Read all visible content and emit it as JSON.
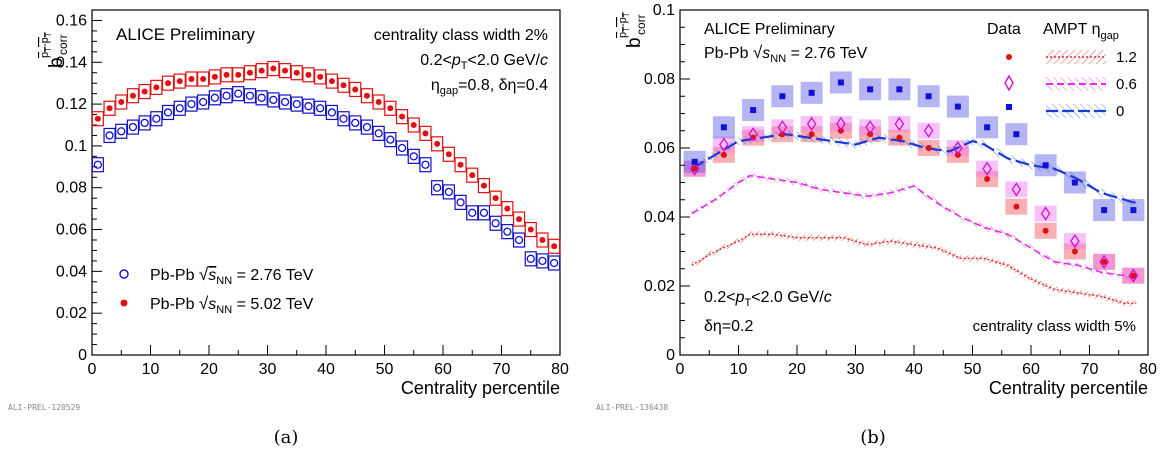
{
  "chart_data": [
    {
      "type": "scatter",
      "subfigure_label": "(a)",
      "watermark": "ALI-PREL-120529",
      "title": "ALICE Preliminary",
      "ylabel": "b",
      "ylabel_sub": "corr",
      "ylabel_sup": "p̄T-p̄T",
      "xlabel": "Centrality percentile",
      "xlim": [
        0,
        80
      ],
      "ylim": [
        0,
        0.165
      ],
      "xticks": [
        "0",
        "10",
        "20",
        "30",
        "40",
        "50",
        "60",
        "70",
        "80"
      ],
      "yticks": [
        "0",
        "0.02",
        "0.04",
        "0.06",
        "0.08",
        "0.1",
        "0.12",
        "0.14",
        "0.16"
      ],
      "annotations": [
        "centrality class width 2%",
        "0.2<pT<2.0 GeV/c",
        "ηgap=0.8, δη=0.4"
      ],
      "legend_position": "bottom-left",
      "series": [
        {
          "name": "Pb-Pb √sNN = 2.76 TeV",
          "color": "#1010c8",
          "marker": "open-circle",
          "x": [
            1,
            3,
            5,
            7,
            9,
            11,
            13,
            15,
            17,
            19,
            21,
            23,
            25,
            27,
            29,
            31,
            33,
            35,
            37,
            39,
            41,
            43,
            45,
            47,
            49,
            51,
            53,
            55,
            57,
            59,
            61,
            63,
            65,
            67,
            69,
            71,
            73,
            75,
            77,
            79
          ],
          "y": [
            0.091,
            0.105,
            0.107,
            0.109,
            0.111,
            0.113,
            0.116,
            0.118,
            0.12,
            0.121,
            0.123,
            0.124,
            0.125,
            0.124,
            0.123,
            0.122,
            0.121,
            0.12,
            0.119,
            0.118,
            0.116,
            0.113,
            0.111,
            0.109,
            0.106,
            0.103,
            0.099,
            0.095,
            0.091,
            0.08,
            0.078,
            0.073,
            0.068,
            0.068,
            0.063,
            0.059,
            0.055,
            0.046,
            0.045,
            0.044
          ]
        },
        {
          "name": "Pb-Pb √sNN = 5.02 TeV",
          "color": "#e01010",
          "marker": "filled-circle",
          "x": [
            1,
            3,
            5,
            7,
            9,
            11,
            13,
            15,
            17,
            19,
            21,
            23,
            25,
            27,
            29,
            31,
            33,
            35,
            37,
            39,
            41,
            43,
            45,
            47,
            49,
            51,
            53,
            55,
            57,
            59,
            61,
            63,
            65,
            67,
            69,
            71,
            73,
            75,
            77,
            79
          ],
          "y": [
            0.113,
            0.118,
            0.121,
            0.124,
            0.126,
            0.128,
            0.13,
            0.131,
            0.132,
            0.132,
            0.133,
            0.134,
            0.134,
            0.135,
            0.136,
            0.137,
            0.136,
            0.135,
            0.134,
            0.133,
            0.131,
            0.129,
            0.127,
            0.124,
            0.121,
            0.118,
            0.114,
            0.11,
            0.106,
            0.101,
            0.096,
            0.091,
            0.086,
            0.081,
            0.075,
            0.07,
            0.065,
            0.06,
            0.055,
            0.052
          ]
        }
      ]
    },
    {
      "type": "scatter",
      "subfigure_label": "(b)",
      "watermark": "ALI-PREL-136438",
      "title": "ALICE Preliminary",
      "subtitle": "Pb-Pb √sNN = 2.76 TeV",
      "ylabel": "b",
      "ylabel_sub": "corr",
      "ylabel_sup": "p̄T-p̄T",
      "xlabel": "Centrality percentile",
      "xlim": [
        0,
        80
      ],
      "ylim": [
        0,
        0.1
      ],
      "xticks": [
        "0",
        "10",
        "20",
        "30",
        "40",
        "50",
        "60",
        "70",
        "80"
      ],
      "yticks": [
        "0",
        "0.02",
        "0.04",
        "0.06",
        "0.08",
        "0.1"
      ],
      "annotations": [
        "0.2<pT<2.0 GeV/c",
        "δη=0.2",
        "centrality class width 5%"
      ],
      "legend_position": "top-right",
      "legend_headers": [
        "Data",
        "AMPT ηgap"
      ],
      "legend_labels": [
        "1.2",
        "0.6",
        "0"
      ],
      "series": [
        {
          "name": "1.2",
          "kind": "data",
          "color": "#e01010",
          "marker": "filled-circle",
          "x": [
            2.5,
            7.5,
            12.5,
            17.5,
            22.5,
            27.5,
            32.5,
            37.5,
            42.5,
            47.5,
            52.5,
            57.5,
            62.5,
            67.5,
            72.5,
            77.5
          ],
          "y": [
            0.054,
            0.058,
            0.063,
            0.064,
            0.064,
            0.065,
            0.064,
            0.063,
            0.06,
            0.058,
            0.051,
            0.043,
            0.036,
            0.03,
            0.027,
            0.023
          ]
        },
        {
          "name": "0.6",
          "kind": "data",
          "color": "#d010d0",
          "marker": "open-diamond",
          "x": [
            2.5,
            7.5,
            12.5,
            17.5,
            22.5,
            27.5,
            32.5,
            37.5,
            42.5,
            47.5,
            52.5,
            57.5,
            62.5,
            67.5,
            72.5,
            77.5
          ],
          "y": [
            0.054,
            0.061,
            0.064,
            0.066,
            0.067,
            0.067,
            0.066,
            0.067,
            0.065,
            0.06,
            0.054,
            0.048,
            0.041,
            0.033,
            0.027,
            0.023
          ]
        },
        {
          "name": "0",
          "kind": "data",
          "color": "#1010d8",
          "marker": "filled-square",
          "x": [
            2.5,
            7.5,
            12.5,
            17.5,
            22.5,
            27.5,
            32.5,
            37.5,
            42.5,
            47.5,
            52.5,
            57.5,
            62.5,
            67.5,
            72.5,
            77.5
          ],
          "y": [
            0.056,
            0.066,
            0.071,
            0.075,
            0.076,
            0.079,
            0.077,
            0.077,
            0.075,
            0.072,
            0.066,
            0.064,
            0.055,
            0.05,
            0.042,
            0.042
          ]
        },
        {
          "name": "1.2",
          "kind": "ampt",
          "color": "#e03030",
          "x": [
            2,
            6,
            10,
            12,
            16,
            20,
            24,
            28,
            32,
            36,
            40,
            44,
            48,
            52,
            56,
            60,
            64,
            68,
            72,
            76,
            78
          ],
          "y": [
            0.026,
            0.03,
            0.033,
            0.035,
            0.035,
            0.034,
            0.034,
            0.034,
            0.032,
            0.033,
            0.032,
            0.031,
            0.028,
            0.028,
            0.026,
            0.022,
            0.019,
            0.018,
            0.017,
            0.015,
            0.015
          ]
        },
        {
          "name": "0.6",
          "kind": "ampt",
          "color": "#e030e0",
          "x": [
            2,
            6,
            10,
            12,
            16,
            20,
            24,
            28,
            32,
            36,
            40,
            44,
            48,
            52,
            56,
            60,
            64,
            68,
            72,
            76,
            78
          ],
          "y": [
            0.041,
            0.045,
            0.05,
            0.052,
            0.051,
            0.05,
            0.048,
            0.047,
            0.046,
            0.047,
            0.049,
            0.044,
            0.04,
            0.037,
            0.035,
            0.031,
            0.027,
            0.026,
            0.024,
            0.023,
            0.022
          ]
        },
        {
          "name": "0",
          "kind": "ampt",
          "color": "#1a3ad8",
          "x": [
            2,
            6,
            10,
            14,
            18,
            22,
            26,
            30,
            34,
            38,
            42,
            46,
            50,
            52,
            56,
            60,
            64,
            68,
            72,
            76,
            78
          ],
          "y": [
            0.054,
            0.058,
            0.062,
            0.063,
            0.064,
            0.063,
            0.062,
            0.061,
            0.063,
            0.062,
            0.06,
            0.059,
            0.062,
            0.061,
            0.057,
            0.055,
            0.054,
            0.051,
            0.047,
            0.045,
            0.044
          ]
        }
      ]
    }
  ]
}
